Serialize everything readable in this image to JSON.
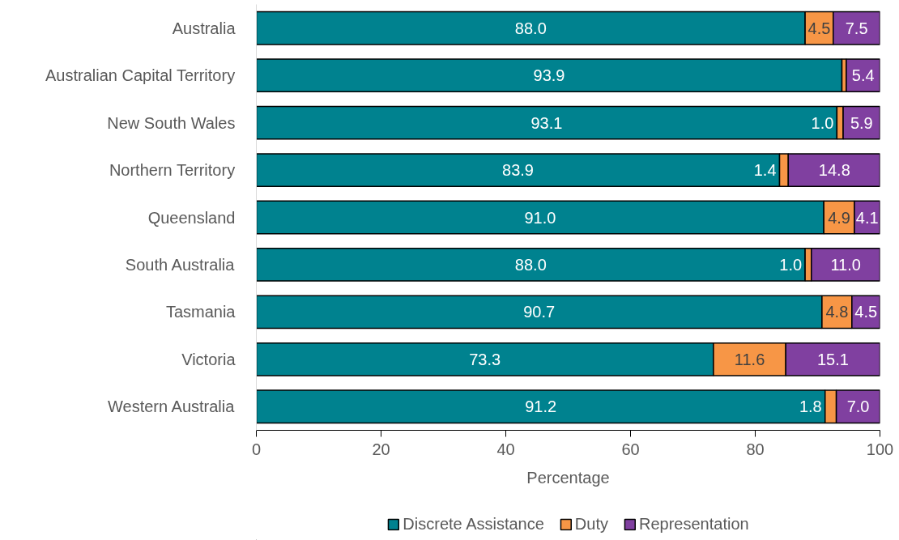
{
  "chart_data": {
    "type": "bar",
    "orientation": "horizontal",
    "stacked": true,
    "categories": [
      "Australia",
      "Australian Capital Territory",
      "New South Wales",
      "Northern Territory",
      "Queensland",
      "South Australia",
      "Tasmania",
      "Victoria",
      "Western Australia"
    ],
    "series": [
      {
        "name": "Discrete Assistance",
        "color": "#00828f",
        "values": [
          88.0,
          93.9,
          93.1,
          83.9,
          91.0,
          88.0,
          90.7,
          73.3,
          91.2
        ],
        "value_labels": [
          "88.0",
          "93.9",
          "93.1",
          "83.9",
          "91.0",
          "88.0",
          "90.7",
          "73.3",
          "91.2"
        ]
      },
      {
        "name": "Duty",
        "color": "#f79646",
        "values": [
          4.5,
          0.7,
          1.0,
          1.4,
          4.9,
          1.0,
          4.8,
          11.6,
          1.8
        ],
        "value_labels": [
          "4.5",
          null,
          "1.0",
          "1.4",
          "4.9",
          "1.0",
          "4.8",
          "11.6",
          "1.8"
        ]
      },
      {
        "name": "Representation",
        "color": "#8040a0",
        "values": [
          7.5,
          5.4,
          5.9,
          14.8,
          4.1,
          11.0,
          4.5,
          15.1,
          7.0
        ],
        "value_labels": [
          "7.5",
          "5.4",
          "5.9",
          "14.8",
          "4.1",
          "11.0",
          "4.5",
          "15.1",
          "7.0"
        ]
      }
    ],
    "xlim": [
      0,
      100
    ],
    "xticks": [
      0,
      20,
      40,
      60,
      80,
      100
    ],
    "xlabel": "Percentage",
    "legend": "bottom",
    "grid": false
  }
}
